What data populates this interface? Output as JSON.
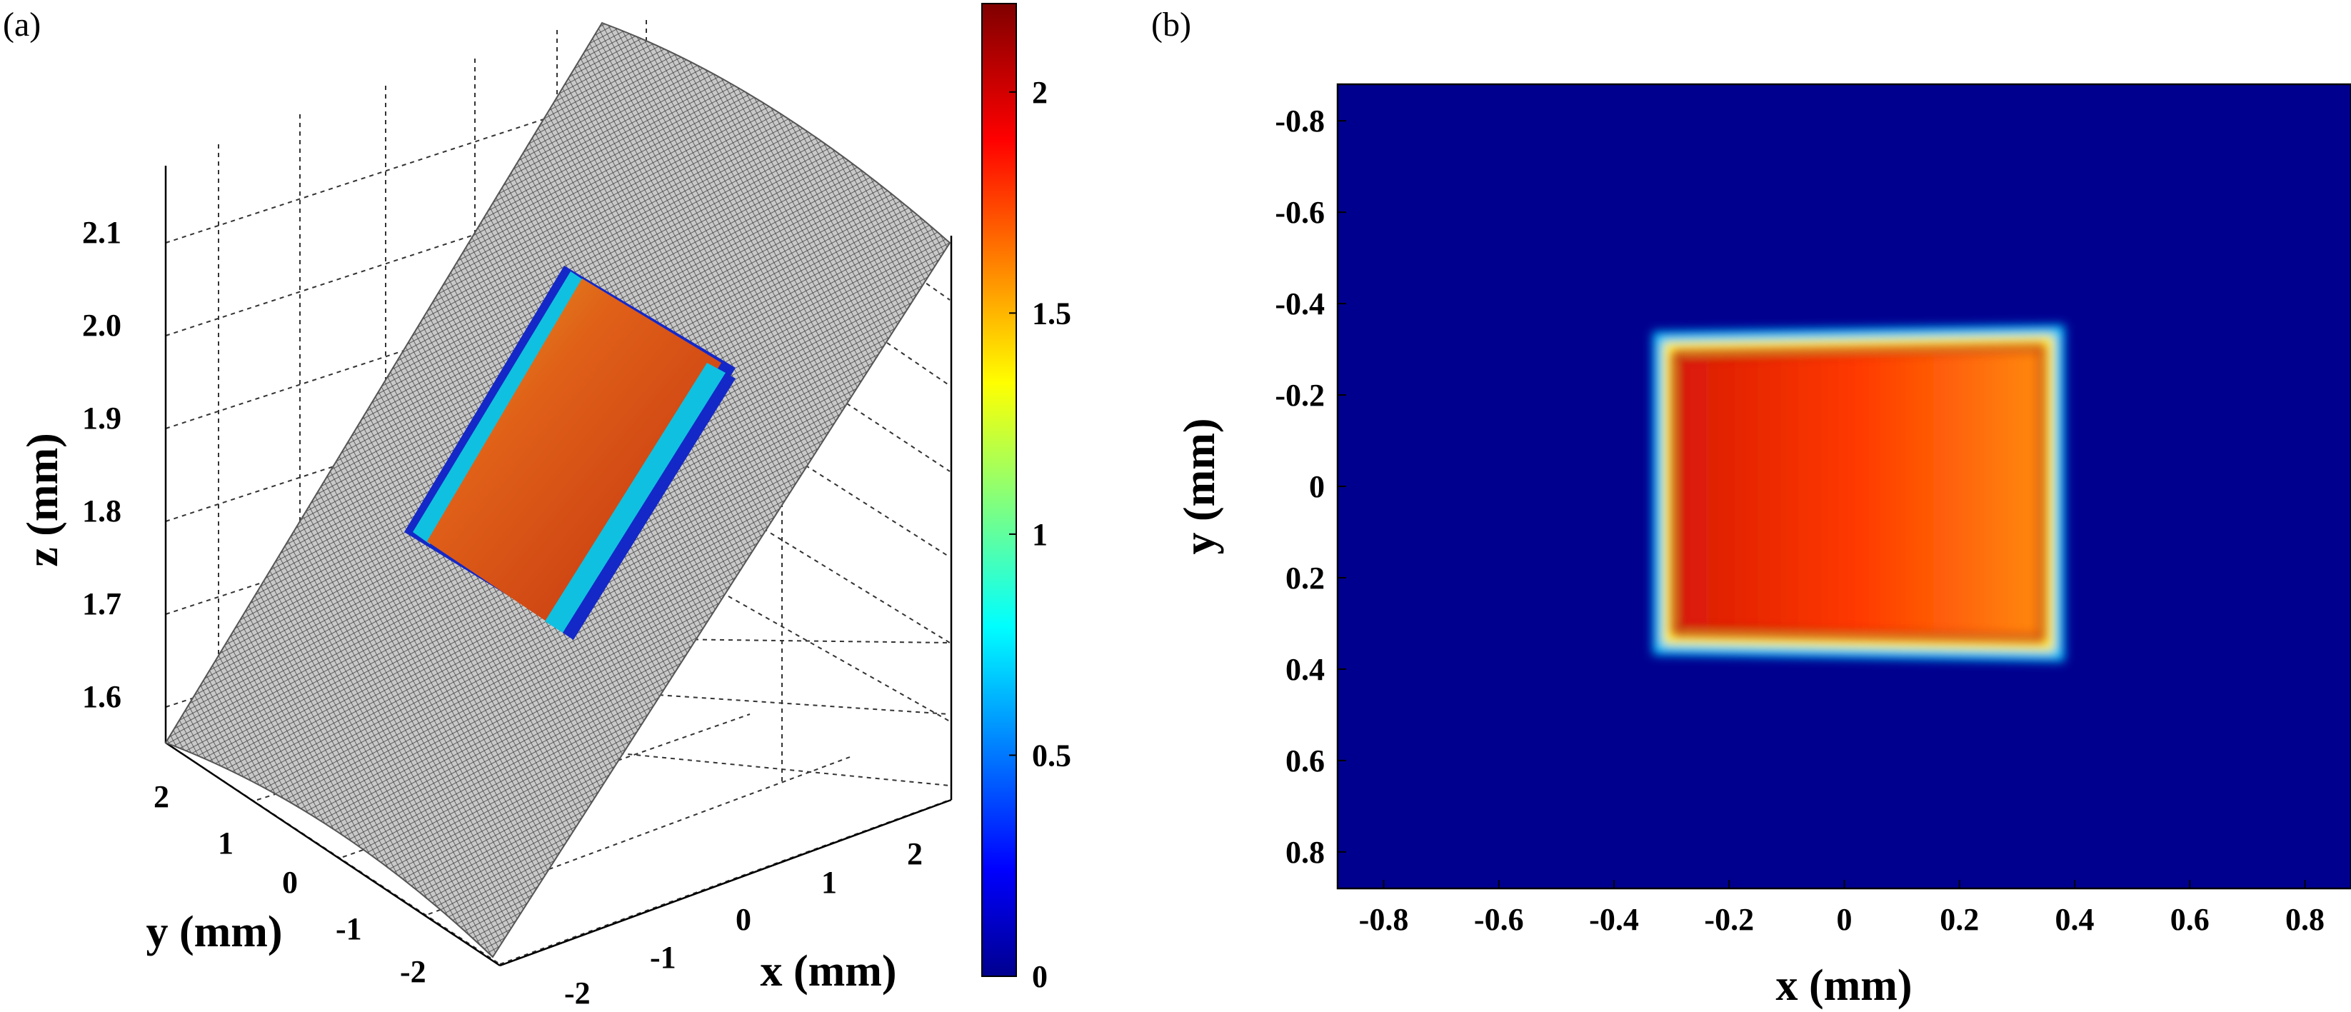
{
  "chart_data": [
    {
      "panel": "(a)",
      "type": "surface3d",
      "title": "",
      "xlabel": "x (mm)",
      "ylabel": "y (mm)",
      "zlabel": "z (mm)",
      "x_ticks": [
        "-2",
        "-1",
        "0",
        "1",
        "2"
      ],
      "y_ticks": [
        "2",
        "1",
        "0",
        "-1",
        "-2"
      ],
      "z_ticks": [
        "2.1",
        "2.0",
        "1.9",
        "1.8",
        "1.7",
        "1.6"
      ],
      "xlim": [
        -2.5,
        2.5
      ],
      "ylim": [
        -2.5,
        2.5
      ],
      "zlim": [
        1.55,
        2.2
      ],
      "grid": true,
      "surface": "curved gray mesh",
      "colored_patch": {
        "x_range": [
          -0.35,
          0.35
        ],
        "y_range": [
          -0.35,
          0.35
        ],
        "value_range": [
          0,
          2.2
        ]
      },
      "colorbar": {
        "ticks": [
          "2",
          "1.5",
          "1",
          "0.5",
          "0"
        ],
        "range": [
          0,
          2.2
        ],
        "colormap": "jet"
      }
    },
    {
      "panel": "(b)",
      "type": "heatmap",
      "title": "",
      "xlabel": "x (mm)",
      "ylabel": "y (mm)",
      "x_ticks": [
        "-0.8",
        "-0.6",
        "-0.4",
        "-0.2",
        "0",
        "0.2",
        "0.4",
        "0.6",
        "0.8"
      ],
      "y_ticks": [
        "-0.8",
        "-0.6",
        "-0.4",
        "-0.2",
        "0",
        "0.2",
        "0.4",
        "0.6",
        "0.8"
      ],
      "xlim": [
        -0.88,
        0.88
      ],
      "ylim": [
        -0.88,
        0.88
      ],
      "y_reversed": true,
      "background_value": 0,
      "rectangle": {
        "x": [
          -0.31,
          0.36
        ],
        "y_top": -0.31,
        "y_bottom": 0.34,
        "edge_value": 1.0,
        "interior_value_left": 2.05,
        "interior_value_right": 1.85
      },
      "colormap": "jet"
    }
  ]
}
